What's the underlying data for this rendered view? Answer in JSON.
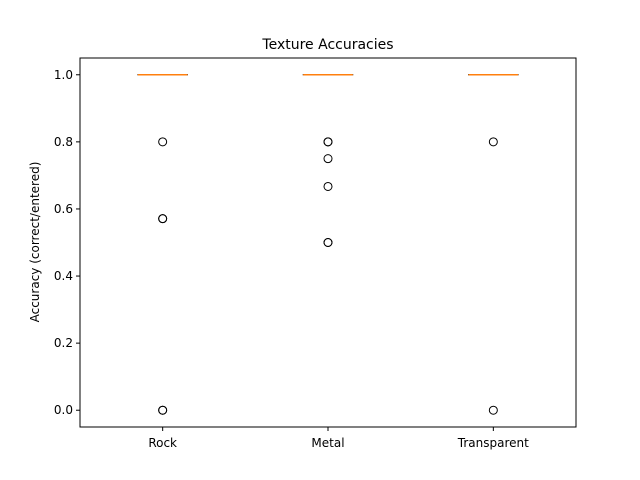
{
  "chart_data": {
    "type": "box",
    "title": "Texture Accuracies",
    "xlabel": "",
    "ylabel": "Accuracy (correct/entered)",
    "categories": [
      "Rock",
      "Metal",
      "Transparent"
    ],
    "ylim": [
      -0.05,
      1.05
    ],
    "yticks": [
      "0.0",
      "0.2",
      "0.4",
      "0.6",
      "0.8",
      "1.0"
    ],
    "ytick_values": [
      0.0,
      0.2,
      0.4,
      0.6,
      0.8,
      1.0
    ],
    "grid": false,
    "boxes": [
      {
        "category": "Rock",
        "q1": 1.0,
        "median": 1.0,
        "q3": 1.0,
        "whisker_low": 1.0,
        "whisker_high": 1.0,
        "outliers": [
          0.8,
          0.571,
          0.571,
          0.0,
          0.0
        ]
      },
      {
        "category": "Metal",
        "q1": 1.0,
        "median": 1.0,
        "q3": 1.0,
        "whisker_low": 1.0,
        "whisker_high": 1.0,
        "outliers": [
          0.8,
          0.8,
          0.75,
          0.667,
          0.5,
          0.5
        ]
      },
      {
        "category": "Transparent",
        "q1": 1.0,
        "median": 1.0,
        "q3": 1.0,
        "whisker_low": 1.0,
        "whisker_high": 1.0,
        "outliers": [
          0.8,
          0.0
        ]
      }
    ],
    "colors": {
      "median": "#ff7f0e",
      "box": "#000000",
      "outlier_edge": "#000000"
    }
  }
}
